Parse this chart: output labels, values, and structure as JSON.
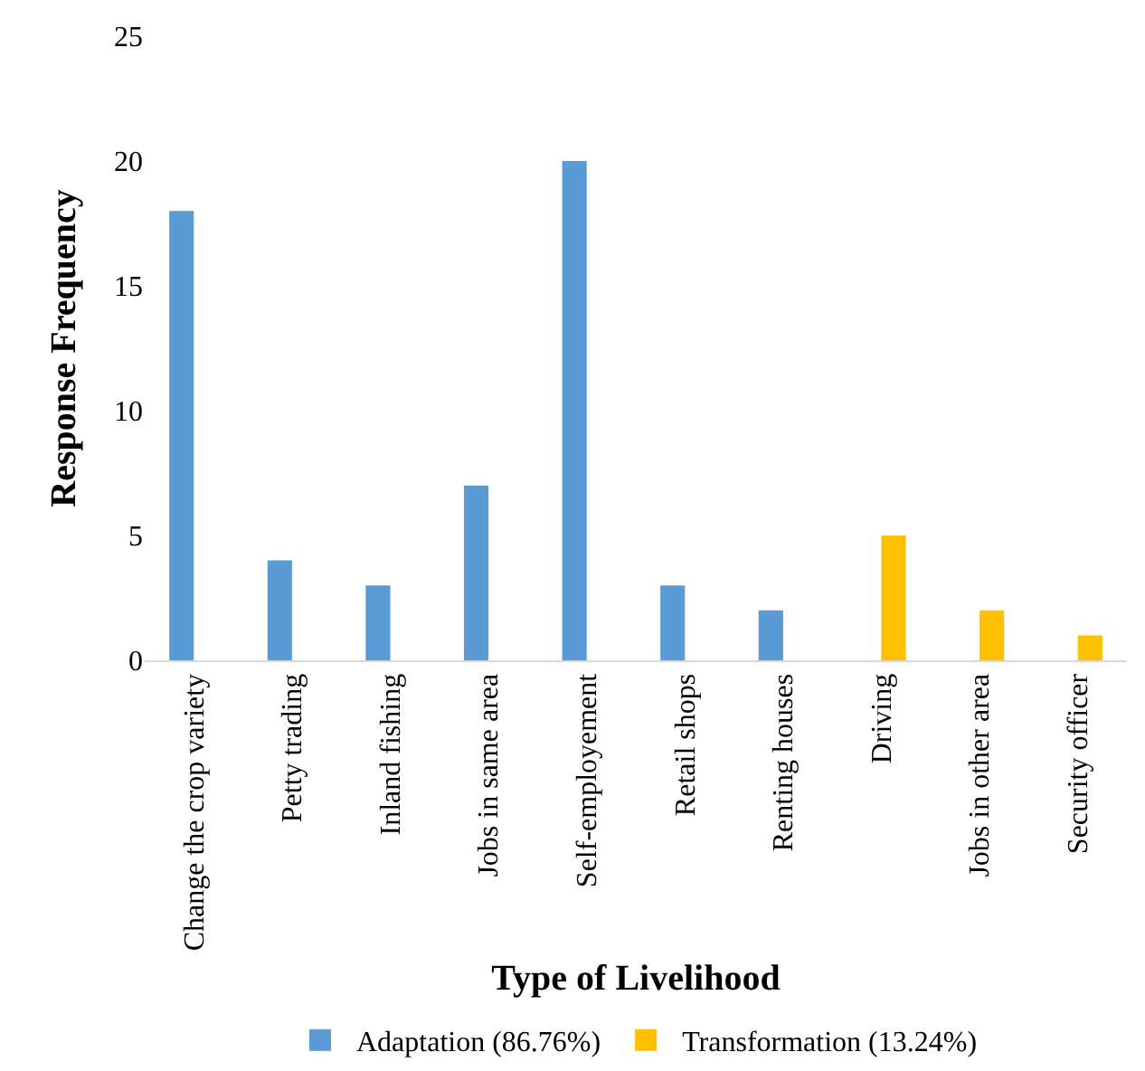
{
  "chart_data": {
    "type": "bar",
    "xlabel": "Type of Livelihood",
    "ylabel": "Response Frequency",
    "categories": [
      "Change the crop variety",
      "Petty trading",
      "Inland fishing",
      "Jobs in same area",
      "Self-employement",
      "Retail shops",
      "Renting houses",
      "Driving",
      "Jobs in other area",
      "Security officer"
    ],
    "series": [
      {
        "name": "Adaptation (86.76%)",
        "color": "#5b9bd5",
        "values": [
          18,
          4,
          3,
          7,
          20,
          3,
          2,
          null,
          null,
          null
        ]
      },
      {
        "name": "Transformation (13.24%)",
        "color": "#ffc000",
        "values": [
          null,
          null,
          null,
          null,
          null,
          null,
          null,
          5,
          2,
          1
        ]
      }
    ],
    "ylim": [
      0,
      25
    ],
    "yticks": [
      0,
      5,
      10,
      15,
      20,
      25
    ],
    "grid": false,
    "legend": "bottom"
  }
}
